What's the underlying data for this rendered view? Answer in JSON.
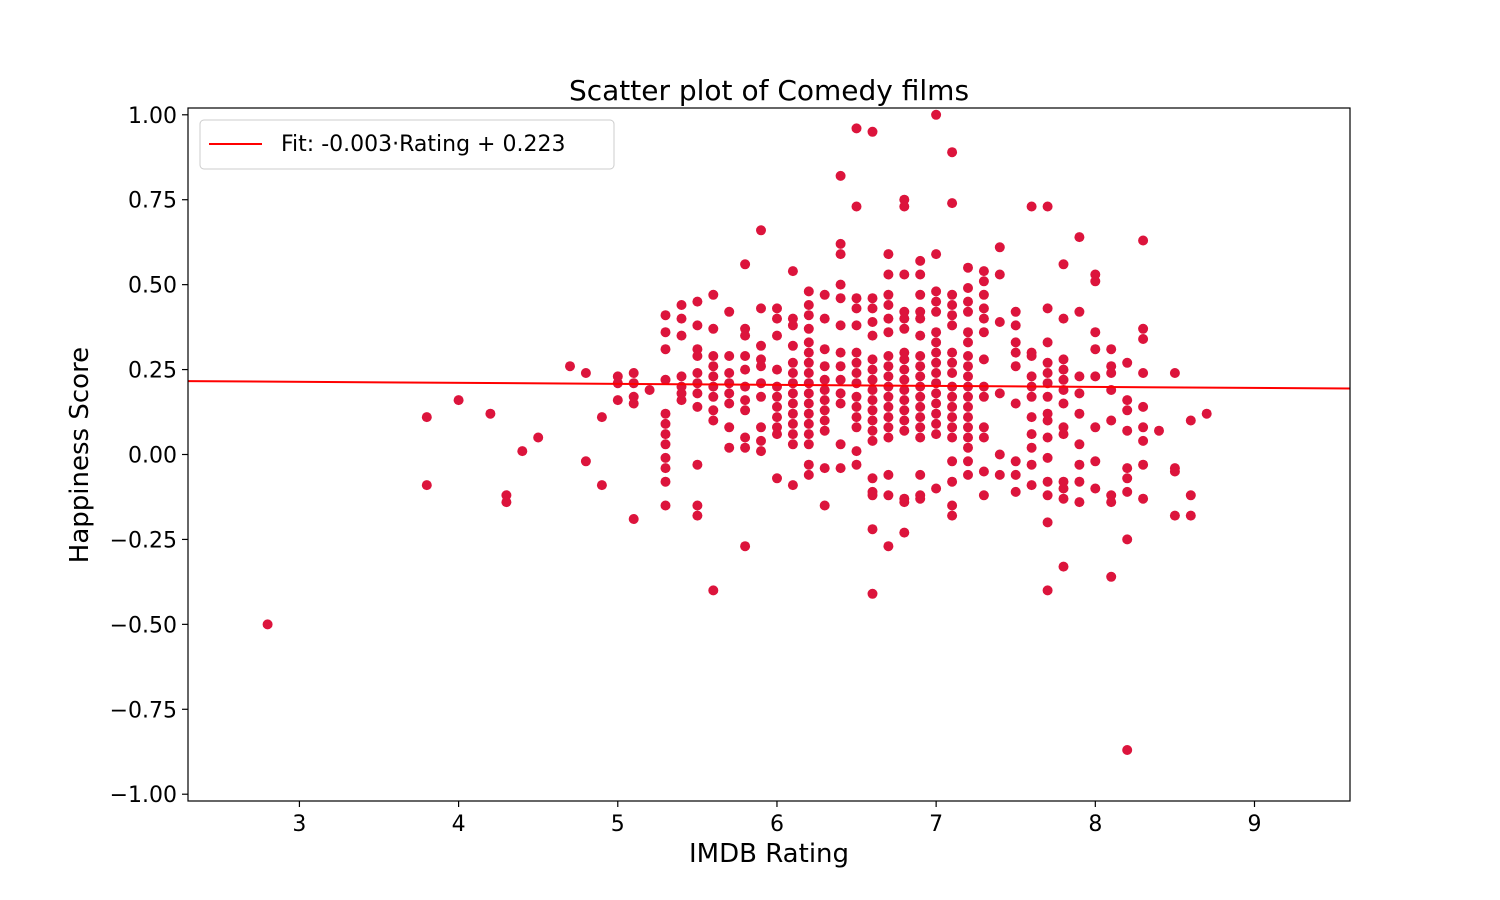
{
  "chart_data": {
    "type": "scatter",
    "title": "Scatter plot of Comedy films",
    "xlabel": "IMDB Rating",
    "ylabel": "Happiness Score",
    "xlim": [
      2.3,
      9.6
    ],
    "ylim": [
      -1.02,
      1.02
    ],
    "xticks": [
      3,
      4,
      5,
      6,
      7,
      8,
      9
    ],
    "yticks": [
      1.0,
      0.75,
      0.5,
      0.25,
      0.0,
      -0.25,
      -0.5,
      -0.75,
      -1.0
    ],
    "ytick_labels": [
      "1.00",
      "0.75",
      "0.50",
      "0.25",
      "0.00",
      "−0.25",
      "−0.50",
      "−0.75",
      "−1.00"
    ],
    "grid": false,
    "legend_position": "top-left",
    "point_color": "#dc143c",
    "fit_color": "#ff0000",
    "fit": {
      "label": "Fit: -0.003·Rating + 0.223",
      "slope": -0.003,
      "intercept": 0.223
    },
    "points": [
      [
        2.8,
        -0.5
      ],
      [
        3.8,
        0.11
      ],
      [
        3.8,
        -0.09
      ],
      [
        4.0,
        0.16
      ],
      [
        4.2,
        0.12
      ],
      [
        4.3,
        -0.12
      ],
      [
        4.3,
        -0.14
      ],
      [
        4.4,
        0.01
      ],
      [
        4.5,
        0.05
      ],
      [
        4.7,
        0.26
      ],
      [
        4.8,
        0.24
      ],
      [
        4.8,
        -0.02
      ],
      [
        4.9,
        0.11
      ],
      [
        4.9,
        -0.09
      ],
      [
        5.0,
        0.23
      ],
      [
        5.0,
        0.21
      ],
      [
        5.0,
        0.16
      ],
      [
        5.1,
        0.24
      ],
      [
        5.1,
        0.21
      ],
      [
        5.1,
        0.17
      ],
      [
        5.1,
        0.15
      ],
      [
        5.1,
        -0.19
      ],
      [
        5.2,
        0.19
      ],
      [
        5.3,
        0.41
      ],
      [
        5.3,
        0.36
      ],
      [
        5.3,
        0.31
      ],
      [
        5.3,
        0.22
      ],
      [
        5.3,
        0.12
      ],
      [
        5.3,
        0.09
      ],
      [
        5.3,
        0.06
      ],
      [
        5.3,
        0.03
      ],
      [
        5.3,
        -0.01
      ],
      [
        5.3,
        -0.04
      ],
      [
        5.3,
        -0.08
      ],
      [
        5.3,
        -0.15
      ],
      [
        5.4,
        0.44
      ],
      [
        5.4,
        0.4
      ],
      [
        5.4,
        0.35
      ],
      [
        5.4,
        0.23
      ],
      [
        5.4,
        0.2
      ],
      [
        5.4,
        0.18
      ],
      [
        5.4,
        0.16
      ],
      [
        5.5,
        0.45
      ],
      [
        5.5,
        0.38
      ],
      [
        5.5,
        0.31
      ],
      [
        5.5,
        0.29
      ],
      [
        5.5,
        0.24
      ],
      [
        5.5,
        0.21
      ],
      [
        5.5,
        0.18
      ],
      [
        5.5,
        0.14
      ],
      [
        5.5,
        -0.03
      ],
      [
        5.5,
        -0.15
      ],
      [
        5.5,
        -0.18
      ],
      [
        5.6,
        0.47
      ],
      [
        5.6,
        0.37
      ],
      [
        5.6,
        0.29
      ],
      [
        5.6,
        0.26
      ],
      [
        5.6,
        0.23
      ],
      [
        5.6,
        0.2
      ],
      [
        5.6,
        0.17
      ],
      [
        5.6,
        0.13
      ],
      [
        5.6,
        0.1
      ],
      [
        5.6,
        -0.4
      ],
      [
        5.7,
        0.42
      ],
      [
        5.7,
        0.29
      ],
      [
        5.7,
        0.24
      ],
      [
        5.7,
        0.21
      ],
      [
        5.7,
        0.18
      ],
      [
        5.7,
        0.15
      ],
      [
        5.7,
        0.08
      ],
      [
        5.7,
        0.02
      ],
      [
        5.8,
        0.56
      ],
      [
        5.8,
        0.37
      ],
      [
        5.8,
        0.35
      ],
      [
        5.8,
        0.29
      ],
      [
        5.8,
        0.25
      ],
      [
        5.8,
        0.2
      ],
      [
        5.8,
        0.16
      ],
      [
        5.8,
        0.13
      ],
      [
        5.8,
        0.05
      ],
      [
        5.8,
        0.02
      ],
      [
        5.8,
        -0.27
      ],
      [
        5.9,
        0.66
      ],
      [
        5.9,
        0.43
      ],
      [
        5.9,
        0.32
      ],
      [
        5.9,
        0.28
      ],
      [
        5.9,
        0.26
      ],
      [
        5.9,
        0.21
      ],
      [
        5.9,
        0.17
      ],
      [
        5.9,
        0.08
      ],
      [
        5.9,
        0.04
      ],
      [
        5.9,
        0.01
      ],
      [
        6.0,
        0.43
      ],
      [
        6.0,
        0.4
      ],
      [
        6.0,
        0.35
      ],
      [
        6.0,
        0.25
      ],
      [
        6.0,
        0.2
      ],
      [
        6.0,
        0.17
      ],
      [
        6.0,
        0.14
      ],
      [
        6.0,
        0.11
      ],
      [
        6.0,
        0.08
      ],
      [
        6.0,
        0.06
      ],
      [
        6.0,
        -0.07
      ],
      [
        6.1,
        0.54
      ],
      [
        6.1,
        0.4
      ],
      [
        6.1,
        0.38
      ],
      [
        6.1,
        0.32
      ],
      [
        6.1,
        0.27
      ],
      [
        6.1,
        0.24
      ],
      [
        6.1,
        0.21
      ],
      [
        6.1,
        0.18
      ],
      [
        6.1,
        0.15
      ],
      [
        6.1,
        0.12
      ],
      [
        6.1,
        0.09
      ],
      [
        6.1,
        0.06
      ],
      [
        6.1,
        0.03
      ],
      [
        6.1,
        -0.09
      ],
      [
        6.2,
        0.48
      ],
      [
        6.2,
        0.44
      ],
      [
        6.2,
        0.41
      ],
      [
        6.2,
        0.37
      ],
      [
        6.2,
        0.33
      ],
      [
        6.2,
        0.3
      ],
      [
        6.2,
        0.27
      ],
      [
        6.2,
        0.24
      ],
      [
        6.2,
        0.21
      ],
      [
        6.2,
        0.18
      ],
      [
        6.2,
        0.15
      ],
      [
        6.2,
        0.12
      ],
      [
        6.2,
        0.09
      ],
      [
        6.2,
        0.06
      ],
      [
        6.2,
        0.03
      ],
      [
        6.2,
        -0.03
      ],
      [
        6.2,
        -0.06
      ],
      [
        6.3,
        0.47
      ],
      [
        6.3,
        0.4
      ],
      [
        6.3,
        0.31
      ],
      [
        6.3,
        0.26
      ],
      [
        6.3,
        0.22
      ],
      [
        6.3,
        0.19
      ],
      [
        6.3,
        0.16
      ],
      [
        6.3,
        0.13
      ],
      [
        6.3,
        0.1
      ],
      [
        6.3,
        0.07
      ],
      [
        6.3,
        -0.04
      ],
      [
        6.3,
        -0.15
      ],
      [
        6.4,
        0.82
      ],
      [
        6.4,
        0.62
      ],
      [
        6.4,
        0.59
      ],
      [
        6.4,
        0.5
      ],
      [
        6.4,
        0.46
      ],
      [
        6.4,
        0.38
      ],
      [
        6.4,
        0.3
      ],
      [
        6.4,
        0.26
      ],
      [
        6.4,
        0.22
      ],
      [
        6.4,
        0.18
      ],
      [
        6.4,
        0.15
      ],
      [
        6.4,
        0.03
      ],
      [
        6.4,
        -0.04
      ],
      [
        6.5,
        0.96
      ],
      [
        6.5,
        0.73
      ],
      [
        6.5,
        0.46
      ],
      [
        6.5,
        0.43
      ],
      [
        6.5,
        0.38
      ],
      [
        6.5,
        0.3
      ],
      [
        6.5,
        0.27
      ],
      [
        6.5,
        0.24
      ],
      [
        6.5,
        0.21
      ],
      [
        6.5,
        0.17
      ],
      [
        6.5,
        0.14
      ],
      [
        6.5,
        0.11
      ],
      [
        6.5,
        0.08
      ],
      [
        6.5,
        0.01
      ],
      [
        6.5,
        -0.03
      ],
      [
        6.6,
        0.95
      ],
      [
        6.6,
        0.46
      ],
      [
        6.6,
        0.43
      ],
      [
        6.6,
        0.39
      ],
      [
        6.6,
        0.35
      ],
      [
        6.6,
        0.28
      ],
      [
        6.6,
        0.25
      ],
      [
        6.6,
        0.22
      ],
      [
        6.6,
        0.19
      ],
      [
        6.6,
        0.16
      ],
      [
        6.6,
        0.13
      ],
      [
        6.6,
        0.1
      ],
      [
        6.6,
        0.07
      ],
      [
        6.6,
        0.04
      ],
      [
        6.6,
        -0.07
      ],
      [
        6.6,
        -0.11
      ],
      [
        6.6,
        -0.12
      ],
      [
        6.6,
        -0.22
      ],
      [
        6.6,
        -0.41
      ],
      [
        6.7,
        0.59
      ],
      [
        6.7,
        0.53
      ],
      [
        6.7,
        0.47
      ],
      [
        6.7,
        0.44
      ],
      [
        6.7,
        0.4
      ],
      [
        6.7,
        0.36
      ],
      [
        6.7,
        0.29
      ],
      [
        6.7,
        0.26
      ],
      [
        6.7,
        0.23
      ],
      [
        6.7,
        0.2
      ],
      [
        6.7,
        0.17
      ],
      [
        6.7,
        0.14
      ],
      [
        6.7,
        0.11
      ],
      [
        6.7,
        0.08
      ],
      [
        6.7,
        0.05
      ],
      [
        6.7,
        -0.06
      ],
      [
        6.7,
        -0.12
      ],
      [
        6.7,
        -0.27
      ],
      [
        6.8,
        0.75
      ],
      [
        6.8,
        0.73
      ],
      [
        6.8,
        0.53
      ],
      [
        6.8,
        0.42
      ],
      [
        6.8,
        0.4
      ],
      [
        6.8,
        0.37
      ],
      [
        6.8,
        0.3
      ],
      [
        6.8,
        0.28
      ],
      [
        6.8,
        0.25
      ],
      [
        6.8,
        0.22
      ],
      [
        6.8,
        0.19
      ],
      [
        6.8,
        0.16
      ],
      [
        6.8,
        0.13
      ],
      [
        6.8,
        0.1
      ],
      [
        6.8,
        0.07
      ],
      [
        6.8,
        -0.13
      ],
      [
        6.8,
        -0.14
      ],
      [
        6.8,
        -0.23
      ],
      [
        6.9,
        0.57
      ],
      [
        6.9,
        0.53
      ],
      [
        6.9,
        0.47
      ],
      [
        6.9,
        0.42
      ],
      [
        6.9,
        0.4
      ],
      [
        6.9,
        0.35
      ],
      [
        6.9,
        0.29
      ],
      [
        6.9,
        0.26
      ],
      [
        6.9,
        0.23
      ],
      [
        6.9,
        0.2
      ],
      [
        6.9,
        0.17
      ],
      [
        6.9,
        0.14
      ],
      [
        6.9,
        0.11
      ],
      [
        6.9,
        0.08
      ],
      [
        6.9,
        0.05
      ],
      [
        6.9,
        -0.06
      ],
      [
        6.9,
        -0.12
      ],
      [
        6.9,
        -0.13
      ],
      [
        7.0,
        1.0
      ],
      [
        7.0,
        0.59
      ],
      [
        7.0,
        0.48
      ],
      [
        7.0,
        0.45
      ],
      [
        7.0,
        0.42
      ],
      [
        7.0,
        0.36
      ],
      [
        7.0,
        0.33
      ],
      [
        7.0,
        0.3
      ],
      [
        7.0,
        0.27
      ],
      [
        7.0,
        0.24
      ],
      [
        7.0,
        0.21
      ],
      [
        7.0,
        0.18
      ],
      [
        7.0,
        0.15
      ],
      [
        7.0,
        0.12
      ],
      [
        7.0,
        0.09
      ],
      [
        7.0,
        0.06
      ],
      [
        7.0,
        -0.1
      ],
      [
        7.1,
        0.89
      ],
      [
        7.1,
        0.74
      ],
      [
        7.1,
        0.47
      ],
      [
        7.1,
        0.44
      ],
      [
        7.1,
        0.41
      ],
      [
        7.1,
        0.38
      ],
      [
        7.1,
        0.3
      ],
      [
        7.1,
        0.27
      ],
      [
        7.1,
        0.24
      ],
      [
        7.1,
        0.2
      ],
      [
        7.1,
        0.17
      ],
      [
        7.1,
        0.14
      ],
      [
        7.1,
        0.11
      ],
      [
        7.1,
        0.08
      ],
      [
        7.1,
        0.05
      ],
      [
        7.1,
        -0.02
      ],
      [
        7.1,
        -0.08
      ],
      [
        7.1,
        -0.15
      ],
      [
        7.1,
        -0.18
      ],
      [
        7.2,
        0.55
      ],
      [
        7.2,
        0.49
      ],
      [
        7.2,
        0.45
      ],
      [
        7.2,
        0.42
      ],
      [
        7.2,
        0.36
      ],
      [
        7.2,
        0.33
      ],
      [
        7.2,
        0.29
      ],
      [
        7.2,
        0.26
      ],
      [
        7.2,
        0.23
      ],
      [
        7.2,
        0.2
      ],
      [
        7.2,
        0.17
      ],
      [
        7.2,
        0.14
      ],
      [
        7.2,
        0.11
      ],
      [
        7.2,
        0.08
      ],
      [
        7.2,
        0.05
      ],
      [
        7.2,
        0.02
      ],
      [
        7.2,
        -0.02
      ],
      [
        7.2,
        -0.06
      ],
      [
        7.3,
        0.54
      ],
      [
        7.3,
        0.51
      ],
      [
        7.3,
        0.47
      ],
      [
        7.3,
        0.43
      ],
      [
        7.3,
        0.4
      ],
      [
        7.3,
        0.36
      ],
      [
        7.3,
        0.28
      ],
      [
        7.3,
        0.2
      ],
      [
        7.3,
        0.17
      ],
      [
        7.3,
        0.08
      ],
      [
        7.3,
        0.05
      ],
      [
        7.3,
        -0.05
      ],
      [
        7.3,
        -0.12
      ],
      [
        7.4,
        0.61
      ],
      [
        7.4,
        0.53
      ],
      [
        7.4,
        0.39
      ],
      [
        7.4,
        0.18
      ],
      [
        7.4,
        0.0
      ],
      [
        7.4,
        -0.06
      ],
      [
        7.5,
        0.42
      ],
      [
        7.5,
        0.38
      ],
      [
        7.5,
        0.33
      ],
      [
        7.5,
        0.3
      ],
      [
        7.5,
        0.26
      ],
      [
        7.5,
        0.15
      ],
      [
        7.5,
        -0.02
      ],
      [
        7.5,
        -0.06
      ],
      [
        7.5,
        -0.11
      ],
      [
        7.6,
        0.73
      ],
      [
        7.6,
        0.3
      ],
      [
        7.6,
        0.29
      ],
      [
        7.6,
        0.23
      ],
      [
        7.6,
        0.2
      ],
      [
        7.6,
        0.17
      ],
      [
        7.6,
        0.11
      ],
      [
        7.6,
        0.06
      ],
      [
        7.6,
        0.02
      ],
      [
        7.6,
        -0.03
      ],
      [
        7.6,
        -0.09
      ],
      [
        7.7,
        0.73
      ],
      [
        7.7,
        0.43
      ],
      [
        7.7,
        0.33
      ],
      [
        7.7,
        0.27
      ],
      [
        7.7,
        0.24
      ],
      [
        7.7,
        0.21
      ],
      [
        7.7,
        0.17
      ],
      [
        7.7,
        0.12
      ],
      [
        7.7,
        0.1
      ],
      [
        7.7,
        0.05
      ],
      [
        7.7,
        -0.01
      ],
      [
        7.7,
        -0.08
      ],
      [
        7.7,
        -0.12
      ],
      [
        7.7,
        -0.2
      ],
      [
        7.7,
        -0.4
      ],
      [
        7.8,
        0.56
      ],
      [
        7.8,
        0.4
      ],
      [
        7.8,
        0.28
      ],
      [
        7.8,
        0.25
      ],
      [
        7.8,
        0.22
      ],
      [
        7.8,
        0.19
      ],
      [
        7.8,
        0.15
      ],
      [
        7.8,
        0.08
      ],
      [
        7.8,
        0.06
      ],
      [
        7.8,
        -0.08
      ],
      [
        7.8,
        -0.1
      ],
      [
        7.8,
        -0.13
      ],
      [
        7.8,
        -0.33
      ],
      [
        7.9,
        0.64
      ],
      [
        7.9,
        0.42
      ],
      [
        7.9,
        0.23
      ],
      [
        7.9,
        0.18
      ],
      [
        7.9,
        0.12
      ],
      [
        7.9,
        0.03
      ],
      [
        7.9,
        -0.03
      ],
      [
        7.9,
        -0.08
      ],
      [
        7.9,
        -0.14
      ],
      [
        8.0,
        0.53
      ],
      [
        8.0,
        0.51
      ],
      [
        8.0,
        0.36
      ],
      [
        8.0,
        0.31
      ],
      [
        8.0,
        0.23
      ],
      [
        8.0,
        0.08
      ],
      [
        8.0,
        -0.02
      ],
      [
        8.0,
        -0.1
      ],
      [
        8.1,
        0.31
      ],
      [
        8.1,
        0.26
      ],
      [
        8.1,
        0.24
      ],
      [
        8.1,
        0.19
      ],
      [
        8.1,
        0.1
      ],
      [
        8.1,
        -0.12
      ],
      [
        8.1,
        -0.14
      ],
      [
        8.1,
        -0.36
      ],
      [
        8.2,
        0.27
      ],
      [
        8.2,
        0.16
      ],
      [
        8.2,
        0.13
      ],
      [
        8.2,
        0.07
      ],
      [
        8.2,
        -0.04
      ],
      [
        8.2,
        -0.07
      ],
      [
        8.2,
        -0.11
      ],
      [
        8.2,
        -0.25
      ],
      [
        8.2,
        -0.87
      ],
      [
        8.3,
        0.63
      ],
      [
        8.3,
        0.37
      ],
      [
        8.3,
        0.34
      ],
      [
        8.3,
        0.24
      ],
      [
        8.3,
        0.14
      ],
      [
        8.3,
        0.08
      ],
      [
        8.3,
        0.04
      ],
      [
        8.3,
        -0.03
      ],
      [
        8.3,
        -0.13
      ],
      [
        8.4,
        0.07
      ],
      [
        8.5,
        0.24
      ],
      [
        8.5,
        -0.04
      ],
      [
        8.5,
        -0.05
      ],
      [
        8.5,
        -0.18
      ],
      [
        8.6,
        0.1
      ],
      [
        8.6,
        -0.12
      ],
      [
        8.6,
        -0.18
      ],
      [
        8.7,
        0.12
      ]
    ]
  }
}
